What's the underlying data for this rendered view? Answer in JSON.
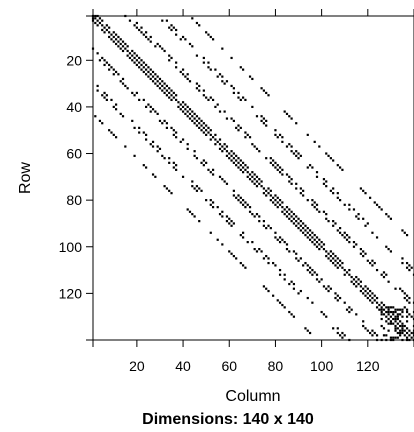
{
  "chart_data": {
    "type": "scatter",
    "subtype": "sparse-matrix-pattern",
    "xlabel": "Column",
    "ylabel": "Row",
    "caption": "Dimensions: 140 x 140",
    "xlim": [
      1,
      140
    ],
    "ylim": [
      140,
      1
    ],
    "x_ticks": [
      20,
      40,
      60,
      80,
      100,
      120
    ],
    "y_ticks": [
      20,
      40,
      60,
      80,
      100,
      120
    ],
    "y_reversed": true,
    "grid": false,
    "marker": "square",
    "marker_color": "#000000",
    "band_offsets": [
      0,
      2,
      14,
      16,
      28,
      30,
      42
    ],
    "rows": 140,
    "cols": 140
  }
}
